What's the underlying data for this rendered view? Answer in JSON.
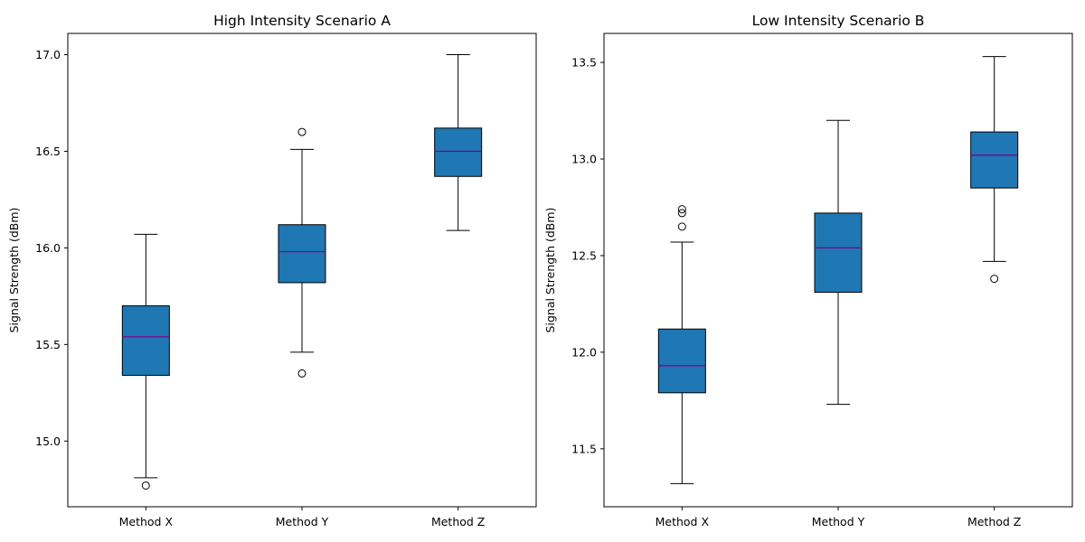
{
  "chart_data": [
    {
      "type": "box",
      "title": "High Intensity Scenario A",
      "xlabel": "",
      "ylabel": "Signal Strength (dBm)",
      "ylim": [
        14.66,
        17.11
      ],
      "yticks": [
        "15.0",
        "15.5",
        "16.0",
        "16.5",
        "17.0"
      ],
      "categories": [
        "Method X",
        "Method Y",
        "Method Z"
      ],
      "boxes": [
        {
          "whislo": 14.81,
          "q1": 15.34,
          "med": 15.54,
          "q3": 15.7,
          "whishi": 16.07,
          "fliers": [
            14.77
          ]
        },
        {
          "whislo": 15.46,
          "q1": 15.82,
          "med": 15.98,
          "q3": 16.12,
          "whishi": 16.51,
          "fliers": [
            16.6,
            15.35
          ]
        },
        {
          "whislo": 16.09,
          "q1": 16.37,
          "med": 16.5,
          "q3": 16.62,
          "whishi": 17.0,
          "fliers": []
        }
      ],
      "box_color": "#1f77b4",
      "median_color": "#800080"
    },
    {
      "type": "box",
      "title": "Low Intensity Scenario B",
      "xlabel": "",
      "ylabel": "Signal Strength (dBm)",
      "ylim": [
        11.2,
        13.65
      ],
      "yticks": [
        "11.5",
        "12.0",
        "12.5",
        "13.0",
        "13.5"
      ],
      "categories": [
        "Method X",
        "Method Y",
        "Method Z"
      ],
      "boxes": [
        {
          "whislo": 11.32,
          "q1": 11.79,
          "med": 11.93,
          "q3": 12.12,
          "whishi": 12.57,
          "fliers": [
            12.65,
            12.72,
            12.74
          ]
        },
        {
          "whislo": 11.73,
          "q1": 12.31,
          "med": 12.54,
          "q3": 12.72,
          "whishi": 13.2,
          "fliers": []
        },
        {
          "whislo": 12.47,
          "q1": 12.85,
          "med": 13.02,
          "q3": 13.14,
          "whishi": 13.53,
          "fliers": [
            12.38
          ]
        }
      ],
      "box_color": "#1f77b4",
      "median_color": "#800080"
    }
  ]
}
